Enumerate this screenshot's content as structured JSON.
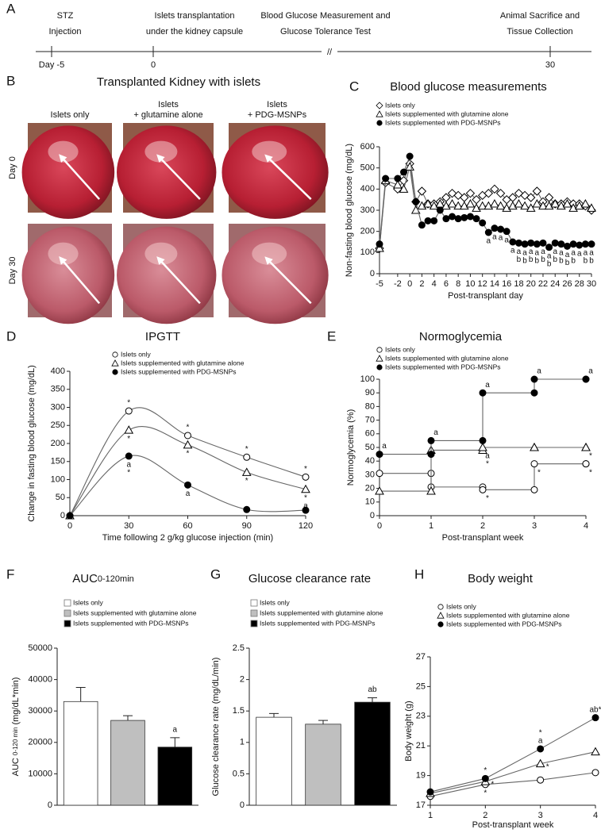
{
  "figure": {
    "timeline": {
      "panel": "A",
      "break": "//",
      "events": [
        {
          "lines": [
            "STZ",
            "Injection"
          ],
          "tick": "Day -5"
        },
        {
          "lines": [
            "Islets transplantation",
            "under the kidney capsule"
          ],
          "tick": "0"
        },
        {
          "lines": [
            "Blood Glucose Measurement and",
            "Glucose Tolerance Test"
          ]
        },
        {
          "lines": [
            "Animal Sacrifice and",
            "Tissue Collection"
          ],
          "tick": "30"
        }
      ]
    },
    "photos": {
      "panel": "B",
      "title": "Transplanted Kidney with islets",
      "columns": [
        [
          "Islets only"
        ],
        [
          "Islets",
          "+ glutamine alone"
        ],
        [
          "Islets",
          "+ PDG-MSNPs"
        ]
      ],
      "rows": [
        "Day 0",
        "Day 30"
      ]
    }
  },
  "chart_data": [
    {
      "type": "line",
      "panel": "C",
      "title": "Blood glucose measurements",
      "xlabel": "Post-transplant day",
      "ylabel": "Non-fasting blood glucose (mg/dL)",
      "xlim": [
        -5,
        30
      ],
      "xticks": [
        -5,
        -2,
        0,
        2,
        4,
        6,
        8,
        10,
        12,
        14,
        16,
        18,
        20,
        22,
        24,
        26,
        28,
        30
      ],
      "ylim": [
        0,
        600
      ],
      "yticks": [
        0,
        100,
        200,
        300,
        400,
        500,
        600
      ],
      "x": [
        -5,
        -4,
        -2,
        -1,
        0,
        1,
        2,
        3,
        4,
        5,
        6,
        7,
        8,
        9,
        10,
        11,
        12,
        13,
        14,
        15,
        16,
        17,
        18,
        19,
        20,
        21,
        22,
        23,
        24,
        25,
        26,
        27,
        28,
        29,
        30
      ],
      "series": [
        {
          "name": "Islets only",
          "color": "#000000",
          "marker": "diamond-open",
          "values": [
            120,
            430,
            400,
            440,
            520,
            340,
            390,
            330,
            330,
            340,
            360,
            380,
            370,
            360,
            380,
            350,
            370,
            380,
            400,
            380,
            350,
            360,
            380,
            370,
            360,
            390,
            340,
            360,
            330,
            330,
            340,
            330,
            330,
            320,
            300
          ]
        },
        {
          "name": "Islets supplemented with glutamine alone",
          "color": "#000000",
          "marker": "triangle-open",
          "values": [
            120,
            440,
            420,
            400,
            505,
            300,
            320,
            330,
            320,
            330,
            320,
            330,
            320,
            320,
            330,
            310,
            320,
            320,
            330,
            320,
            310,
            320,
            330,
            320,
            310,
            330,
            320,
            320,
            330,
            320,
            330,
            310,
            320,
            330,
            310
          ]
        },
        {
          "name": "Islets supplemented with PDG-MSNPs",
          "color": "#000000",
          "marker": "circle",
          "label_position": "below",
          "values": [
            140,
            450,
            450,
            480,
            555,
            340,
            230,
            250,
            250,
            300,
            260,
            270,
            260,
            265,
            270,
            260,
            240,
            195,
            215,
            210,
            200,
            150,
            145,
            140,
            145,
            140,
            145,
            125,
            145,
            140,
            130,
            140,
            135,
            140,
            140
          ],
          "point_labels": [
            null,
            null,
            null,
            null,
            null,
            null,
            null,
            null,
            null,
            null,
            null,
            null,
            null,
            null,
            null,
            null,
            null,
            [
              "a"
            ],
            [
              "a"
            ],
            [
              "a"
            ],
            [
              "a"
            ],
            [
              "a"
            ],
            [
              "a",
              "b"
            ],
            [
              "a",
              "b"
            ],
            [
              "a",
              "b"
            ],
            [
              "a",
              "b"
            ],
            [
              "a",
              "b"
            ],
            [
              "a",
              "b"
            ],
            [
              "a",
              "b"
            ],
            [
              "a",
              "b"
            ],
            [
              "a",
              "b"
            ],
            [
              "a",
              "b"
            ],
            [
              "a"
            ],
            [
              "a",
              "b"
            ],
            [
              "a",
              "b"
            ]
          ]
        }
      ]
    },
    {
      "type": "line",
      "smooth": true,
      "panel": "D",
      "title": "IPGTT",
      "xlabel": "Time following 2 g/kg glucose injection (min)",
      "ylabel": "Change in fasting blood glucose (mg/dL)",
      "xlim": [
        0,
        120
      ],
      "xticks": [
        0,
        30,
        60,
        90,
        120
      ],
      "ylim": [
        0,
        400
      ],
      "yticks": [
        0,
        50,
        100,
        150,
        200,
        250,
        300,
        350,
        400
      ],
      "x": [
        0,
        30,
        60,
        90,
        120
      ],
      "series": [
        {
          "name": "Islets only",
          "color": "#000000",
          "marker": "circle-open",
          "label_position": "above",
          "values": [
            0,
            290,
            222,
            162,
            107
          ],
          "point_labels": [
            null,
            [
              "*"
            ],
            [
              "*"
            ],
            [
              "*"
            ],
            [
              "*"
            ]
          ]
        },
        {
          "name": "Islets supplemented with glutamine alone",
          "color": "#000000",
          "marker": "triangle-open",
          "label_position": "below",
          "values": [
            0,
            237,
            196,
            120,
            73
          ],
          "point_labels": [
            null,
            [
              "*"
            ],
            [
              "*"
            ],
            [
              "*"
            ],
            [
              "*",
              "a"
            ]
          ]
        },
        {
          "name": "Islets supplemented with PDG-MSNPs",
          "color": "#000000",
          "marker": "circle",
          "label_position": "below",
          "values": [
            0,
            165,
            85,
            17,
            15
          ],
          "point_labels": [
            null,
            [
              "a",
              "*"
            ],
            [
              "a"
            ],
            null,
            null
          ]
        }
      ]
    },
    {
      "type": "step",
      "panel": "E",
      "title": "Normoglycemia",
      "xlabel": "Post-transplant week",
      "ylabel": "Normoglycemia (%)",
      "xlim": [
        0,
        4
      ],
      "xticks": [
        0,
        1,
        2,
        3,
        4
      ],
      "ylim": [
        0,
        100
      ],
      "yticks": [
        0,
        10,
        20,
        30,
        40,
        50,
        60,
        70,
        80,
        90,
        100
      ],
      "x": [
        0,
        1,
        2,
        3,
        4
      ],
      "series": [
        {
          "name": "Islets only",
          "color": "#000000",
          "marker": "circle-open",
          "label_position": "below",
          "values": [
            31,
            21,
            19,
            38,
            38
          ],
          "point_labels": [
            null,
            null,
            [
              "*"
            ],
            [
              "*"
            ],
            [
              "*"
            ]
          ]
        },
        {
          "name": "Islets supplemented with glutamine alone",
          "color": "#000000",
          "marker": "triangle-open",
          "label_position": "below",
          "values": [
            18,
            48,
            50,
            50,
            50
          ],
          "point_labels": [
            null,
            null,
            [
              "a",
              "*"
            ],
            null,
            [
              "*"
            ]
          ]
        },
        {
          "name": "Islets supplemented with PDG-MSNPs",
          "color": "#000000",
          "marker": "circle",
          "label_position": "above",
          "values": [
            45,
            55,
            90,
            100,
            100
          ],
          "point_labels": [
            [
              "a"
            ],
            [
              "a"
            ],
            [
              "a"
            ],
            [
              "a"
            ],
            [
              "a"
            ]
          ]
        }
      ]
    },
    {
      "type": "bar",
      "panel": "F",
      "title": "AUC",
      "title_subscript": "0-120min",
      "ylabel": "AUC",
      "ylabel_subscript": "0-120 min",
      "ylabel_unit": "(mg/dL*min)",
      "ylim": [
        0,
        50000
      ],
      "yticks": [
        0,
        10000,
        20000,
        30000,
        40000,
        50000
      ],
      "categories": [
        "Islets only",
        "Islets supplemented with glutamine alone",
        "Islets supplemented with PDG-MSNPs"
      ],
      "colors": [
        "#ffffff",
        "#bfbfbf",
        "#000000"
      ],
      "values": [
        33000,
        27000,
        18500
      ],
      "errors": [
        4500,
        1500,
        3000
      ],
      "point_labels": [
        null,
        null,
        [
          "a"
        ]
      ]
    },
    {
      "type": "bar",
      "panel": "G",
      "title": "Glucose clearance rate",
      "ylabel": "Glucose clearance rate (mg/dL/min)",
      "ylim": [
        0,
        2.5
      ],
      "yticks": [
        0,
        0.5,
        1,
        1.5,
        2,
        2.5
      ],
      "categories": [
        "Islets only",
        "Islets supplemented with glutamine alone",
        "Islets supplemented with PDG-MSNPs"
      ],
      "colors": [
        "#ffffff",
        "#bfbfbf",
        "#000000"
      ],
      "values": [
        1.4,
        1.29,
        1.64
      ],
      "errors": [
        0.06,
        0.06,
        0.07
      ],
      "point_labels": [
        null,
        null,
        [
          "ab"
        ]
      ]
    },
    {
      "type": "line",
      "panel": "H",
      "title": "Body weight",
      "xlabel": "Post-transplant week",
      "ylabel": "Body weight (g)",
      "xlim": [
        1,
        4
      ],
      "xticks": [
        1,
        2,
        3,
        4
      ],
      "ylim": [
        17,
        27
      ],
      "yticks": [
        17,
        19,
        21,
        23,
        25,
        27
      ],
      "x": [
        1,
        2,
        3,
        4
      ],
      "series": [
        {
          "name": "Islets only",
          "color": "#000000",
          "marker": "circle-open",
          "label_position": "below",
          "values": [
            17.6,
            18.4,
            18.7,
            19.2
          ],
          "point_labels": [
            null,
            [
              "*"
            ],
            null,
            null
          ]
        },
        {
          "name": "Islets supplemented with glutamine alone",
          "color": "#000000",
          "marker": "triangle-open",
          "label_position": "right",
          "values": [
            17.8,
            18.6,
            19.8,
            20.6
          ],
          "point_labels": [
            null,
            [
              "*"
            ],
            [
              "*"
            ],
            [
              "*"
            ]
          ]
        },
        {
          "name": "Islets supplemented with PDG-MSNPs",
          "color": "#000000",
          "marker": "circle",
          "label_position": "above",
          "values": [
            17.9,
            18.8,
            20.8,
            22.9
          ],
          "point_labels": [
            null,
            [
              "*"
            ],
            [
              "a",
              "*"
            ],
            [
              "ab*"
            ]
          ]
        }
      ]
    }
  ]
}
